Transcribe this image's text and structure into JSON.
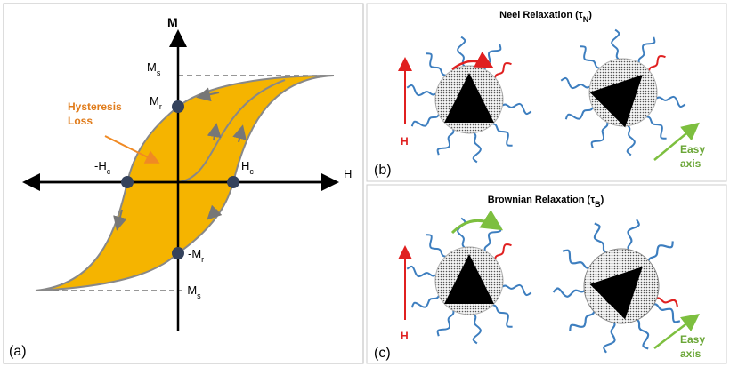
{
  "panel_a": {
    "y_axis": "M",
    "x_axis": "H",
    "ms": {
      "base": "M",
      "sub": "s"
    },
    "mr": {
      "base": "M",
      "sub": "r"
    },
    "hc": {
      "base": "H",
      "sub": "c"
    },
    "neg_hc": {
      "base": "-H",
      "sub": "c"
    },
    "neg_mr": {
      "base": "-M",
      "sub": "r"
    },
    "neg_ms": {
      "base": "-M",
      "sub": "s"
    },
    "loss_label": [
      "Hysteresis",
      "Loss"
    ],
    "tag": "(a)"
  },
  "panel_b": {
    "title": {
      "prefix": "Neel Relaxation (τ",
      "sub": "N",
      "suffix": ")"
    },
    "field": "H",
    "easy_axis": [
      "Easy",
      "axis"
    ],
    "tag": "(b)"
  },
  "panel_c": {
    "title": {
      "prefix": "Brownian Relaxation (τ",
      "sub": "B",
      "suffix": ")"
    },
    "field": "H",
    "easy_axis": [
      "Easy",
      "axis"
    ],
    "tag": "(c)"
  }
}
